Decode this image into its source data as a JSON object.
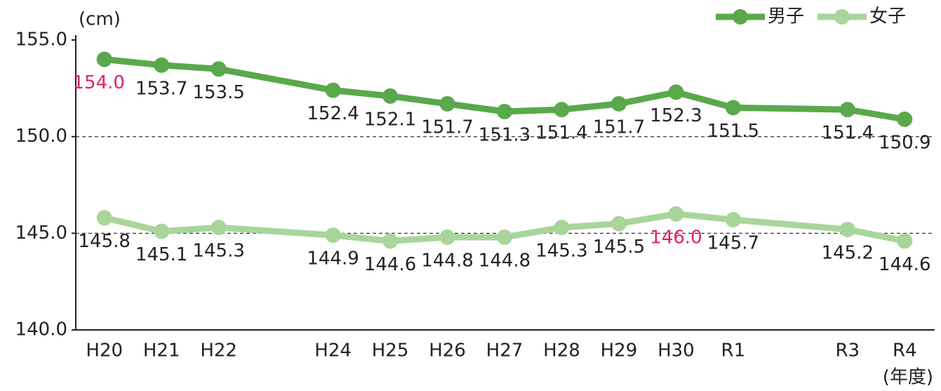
{
  "chart_data": {
    "type": "line",
    "y_unit": "(cm)",
    "x_unit": "(年度)",
    "categories": [
      "H20",
      "H21",
      "H22",
      null,
      "H24",
      "H25",
      "H26",
      "H27",
      "H28",
      "H29",
      "H30",
      "R1",
      null,
      "R3",
      "R4"
    ],
    "series": [
      {
        "name": "男子",
        "color": "#5aa84c",
        "highlight_index": 0,
        "values": [
          154.0,
          153.7,
          153.5,
          null,
          152.4,
          152.1,
          151.7,
          151.3,
          151.4,
          151.7,
          152.3,
          151.5,
          null,
          151.4,
          150.9
        ],
        "value_labels": [
          "154.0",
          "153.7",
          "153.5",
          null,
          "152.4",
          "152.1",
          "151.7",
          "151.3",
          "151.4",
          "151.7",
          "152.3",
          "151.5",
          null,
          "151.4",
          "150.9"
        ]
      },
      {
        "name": "女子",
        "color": "#a9d59b",
        "highlight_index": 10,
        "values": [
          145.8,
          145.1,
          145.3,
          null,
          144.9,
          144.6,
          144.8,
          144.8,
          145.3,
          145.5,
          146.0,
          145.7,
          null,
          145.2,
          144.6
        ],
        "value_labels": [
          "145.8",
          "145.1",
          "145.3",
          null,
          "144.9",
          "144.6",
          "144.8",
          "144.8",
          "145.3",
          "145.5",
          "146.0",
          "145.7",
          null,
          "145.2",
          "144.6"
        ]
      }
    ],
    "highlight_color": "#e0206a",
    "span_gaps": true,
    "ylim": [
      140,
      155
    ],
    "yticks": [
      {
        "value": 140,
        "label": "140.0"
      },
      {
        "value": 145,
        "label": "145.0"
      },
      {
        "value": 150,
        "label": "150.0"
      },
      {
        "value": 155,
        "label": "155.0"
      }
    ],
    "grid": true,
    "legend": "top-right"
  }
}
